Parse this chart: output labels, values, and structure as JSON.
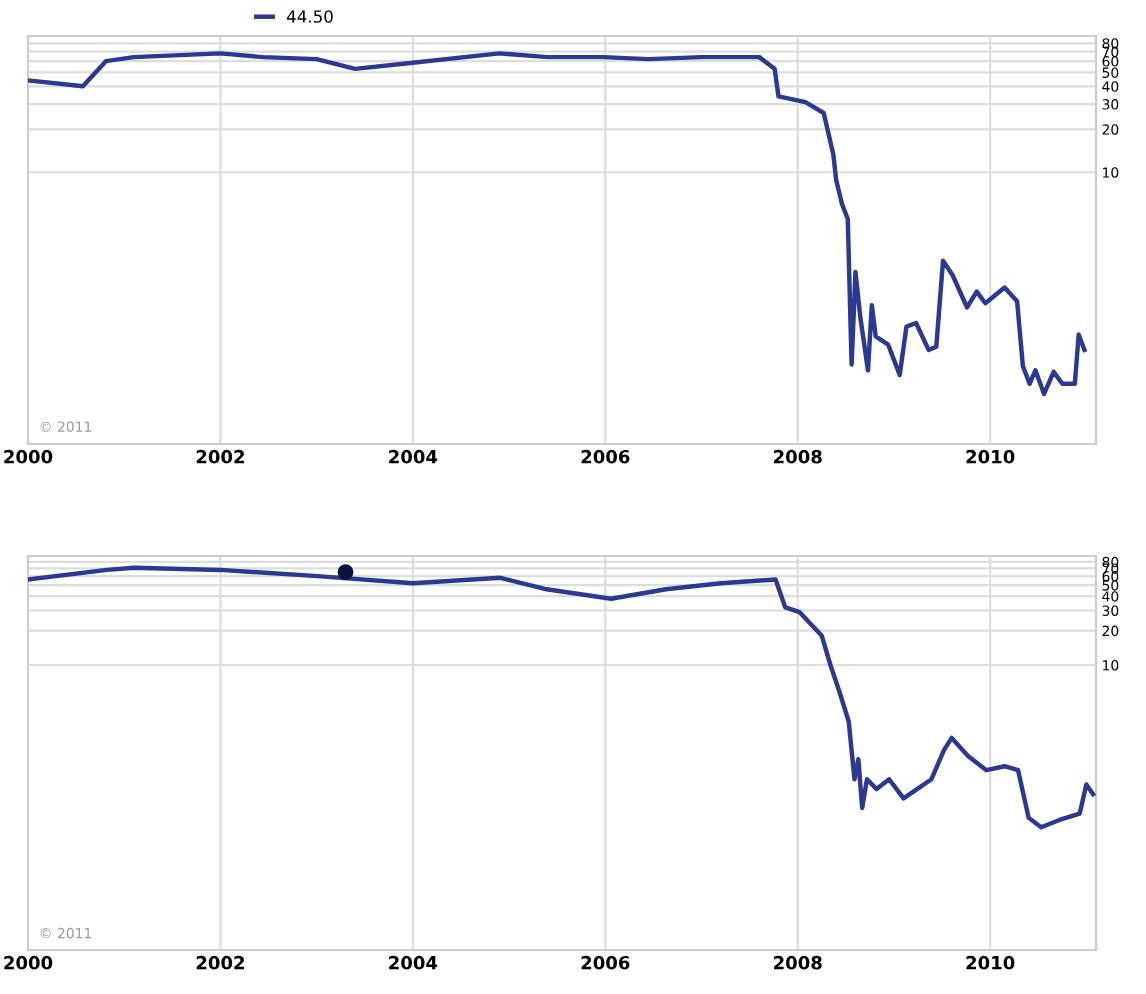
{
  "chart_data": [
    {
      "type": "line",
      "log": "y",
      "grid": true,
      "legend": "top",
      "xlim": [
        2000,
        2011.1
      ],
      "xticks": [
        2000,
        2002,
        2004,
        2006,
        2008,
        2010
      ],
      "ylim": [
        0.125,
        90
      ],
      "yticks": [
        10,
        20,
        30,
        40,
        50,
        60,
        70,
        80
      ],
      "annotations": [
        "© 2011"
      ],
      "series": [
        {
          "name": "44.50",
          "color": "#2b3990",
          "x": [
            2000.0,
            2000.57,
            2000.81,
            2001.1,
            2002.0,
            2002.44,
            2003.0,
            2003.4,
            2003.95,
            2004.9,
            2005.4,
            2005.98,
            2006.45,
            2007.0,
            2007.6,
            2007.76,
            2007.8,
            2008.08,
            2008.27,
            2008.37,
            2008.4,
            2008.46,
            2008.52,
            2008.56,
            2008.6,
            2008.65,
            2008.73,
            2008.77,
            2008.81,
            2008.94,
            2009.06,
            2009.13,
            2009.23,
            2009.36,
            2009.44,
            2009.51,
            2009.61,
            2009.76,
            2009.86,
            2009.95,
            2010.15,
            2010.28,
            2010.34,
            2010.41,
            2010.47,
            2010.56,
            2010.66,
            2010.75,
            2010.88,
            2010.92,
            2010.98
          ],
          "values": [
            44,
            40,
            60,
            64,
            68,
            64,
            62,
            53,
            58,
            68,
            64,
            64,
            62,
            64,
            64,
            53,
            34,
            31,
            26,
            13.3,
            8.8,
            6.0,
            4.7,
            0.45,
            2.0,
            0.97,
            0.41,
            1.17,
            0.71,
            0.62,
            0.38,
            0.83,
            0.88,
            0.57,
            0.6,
            2.4,
            1.9,
            1.13,
            1.46,
            1.21,
            1.56,
            1.25,
            0.44,
            0.33,
            0.41,
            0.28,
            0.4,
            0.33,
            0.33,
            0.73,
            0.57
          ]
        }
      ]
    },
    {
      "type": "line",
      "log": "y",
      "grid": true,
      "xlim": [
        2000,
        2011.1
      ],
      "xticks": [
        2000,
        2002,
        2004,
        2006,
        2008,
        2010
      ],
      "ylim": [
        0.032,
        90
      ],
      "yticks": [
        10,
        20,
        30,
        40,
        50,
        60,
        70,
        80
      ],
      "annotations": [
        "© 2011"
      ],
      "series": [
        {
          "color": "#2b3990",
          "x": [
            2000.0,
            2000.82,
            2001.1,
            2002.0,
            2003.01,
            2004.0,
            2004.91,
            2005.39,
            2006.06,
            2006.63,
            2007.2,
            2007.77,
            2007.87,
            2008.02,
            2008.25,
            2008.34,
            2008.44,
            2008.53,
            2008.59,
            2008.63,
            2008.67,
            2008.72,
            2008.82,
            2008.95,
            2009.1,
            2009.39,
            2009.52,
            2009.6,
            2009.77,
            2009.96,
            2010.15,
            2010.29,
            2010.4,
            2010.53,
            2010.72,
            2010.93,
            2011.0,
            2011.07
          ],
          "values": [
            56,
            68,
            71,
            68,
            60,
            52,
            58,
            46,
            38,
            46,
            52,
            56,
            32,
            29,
            18,
            10,
            5.6,
            3.2,
            1.0,
            1.5,
            0.56,
            1.0,
            0.82,
            1.0,
            0.68,
            1.0,
            1.8,
            2.3,
            1.6,
            1.2,
            1.3,
            1.2,
            0.46,
            0.38,
            0.44,
            0.5,
            0.9,
            0.74
          ]
        },
        {
          "type": "scatter",
          "marker": "circle",
          "color": "#0a1240",
          "x": [
            2003.3
          ],
          "values": [
            65
          ]
        }
      ]
    }
  ]
}
